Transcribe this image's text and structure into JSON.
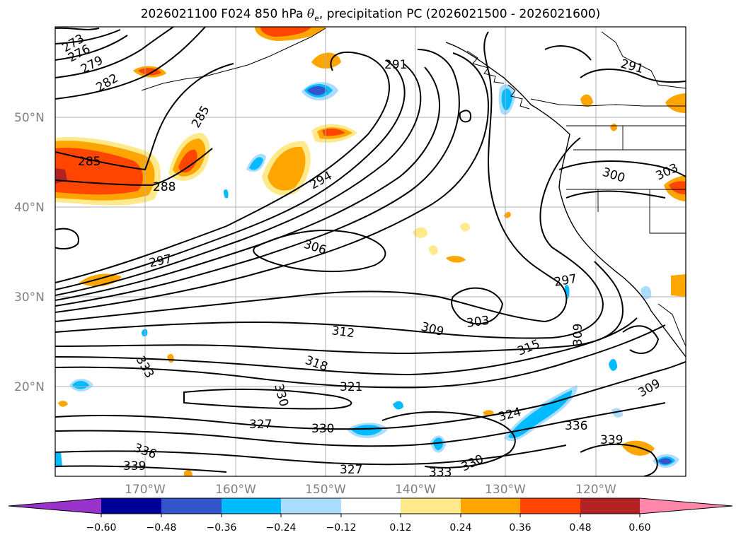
{
  "title": {
    "prefix": "2026021100 F024 850 hPa ",
    "theta": "θ",
    "sub": "e",
    "suffix": ", precipitation PC (2026021500 - 2026021600)"
  },
  "lat_labels": [
    "50°N",
    "40°N",
    "30°N",
    "20°N"
  ],
  "lon_labels": [
    "170°W",
    "160°W",
    "150°W",
    "140°W",
    "130°W",
    "120°W"
  ],
  "contour_labels": [
    "273",
    "276",
    "279",
    "282",
    "285",
    "285",
    "288",
    "291",
    "291",
    "294",
    "297",
    "297",
    "300",
    "303",
    "306",
    "309",
    "312",
    "315",
    "318",
    "321",
    "324",
    "327",
    "327",
    "330",
    "330",
    "333",
    "333",
    "336",
    "336",
    "339",
    "339",
    "309",
    "309",
    "303",
    "330"
  ],
  "colorbar": {
    "ticks": [
      "−0.60",
      "−0.48",
      "−0.36",
      "−0.24",
      "−0.12",
      "0.12",
      "0.24",
      "0.36",
      "0.48",
      "0.60"
    ],
    "colors": {
      "under": "#9933cc",
      "c1": "#000099",
      "c2": "#3355cc",
      "c3": "#00bbff",
      "c4": "#aaddff",
      "c5": "#ffffff",
      "c6": "#ffe98a",
      "c7": "#ffa500",
      "c8": "#ff4500",
      "c9": "#b22222",
      "over": "#ff88aa"
    }
  }
}
